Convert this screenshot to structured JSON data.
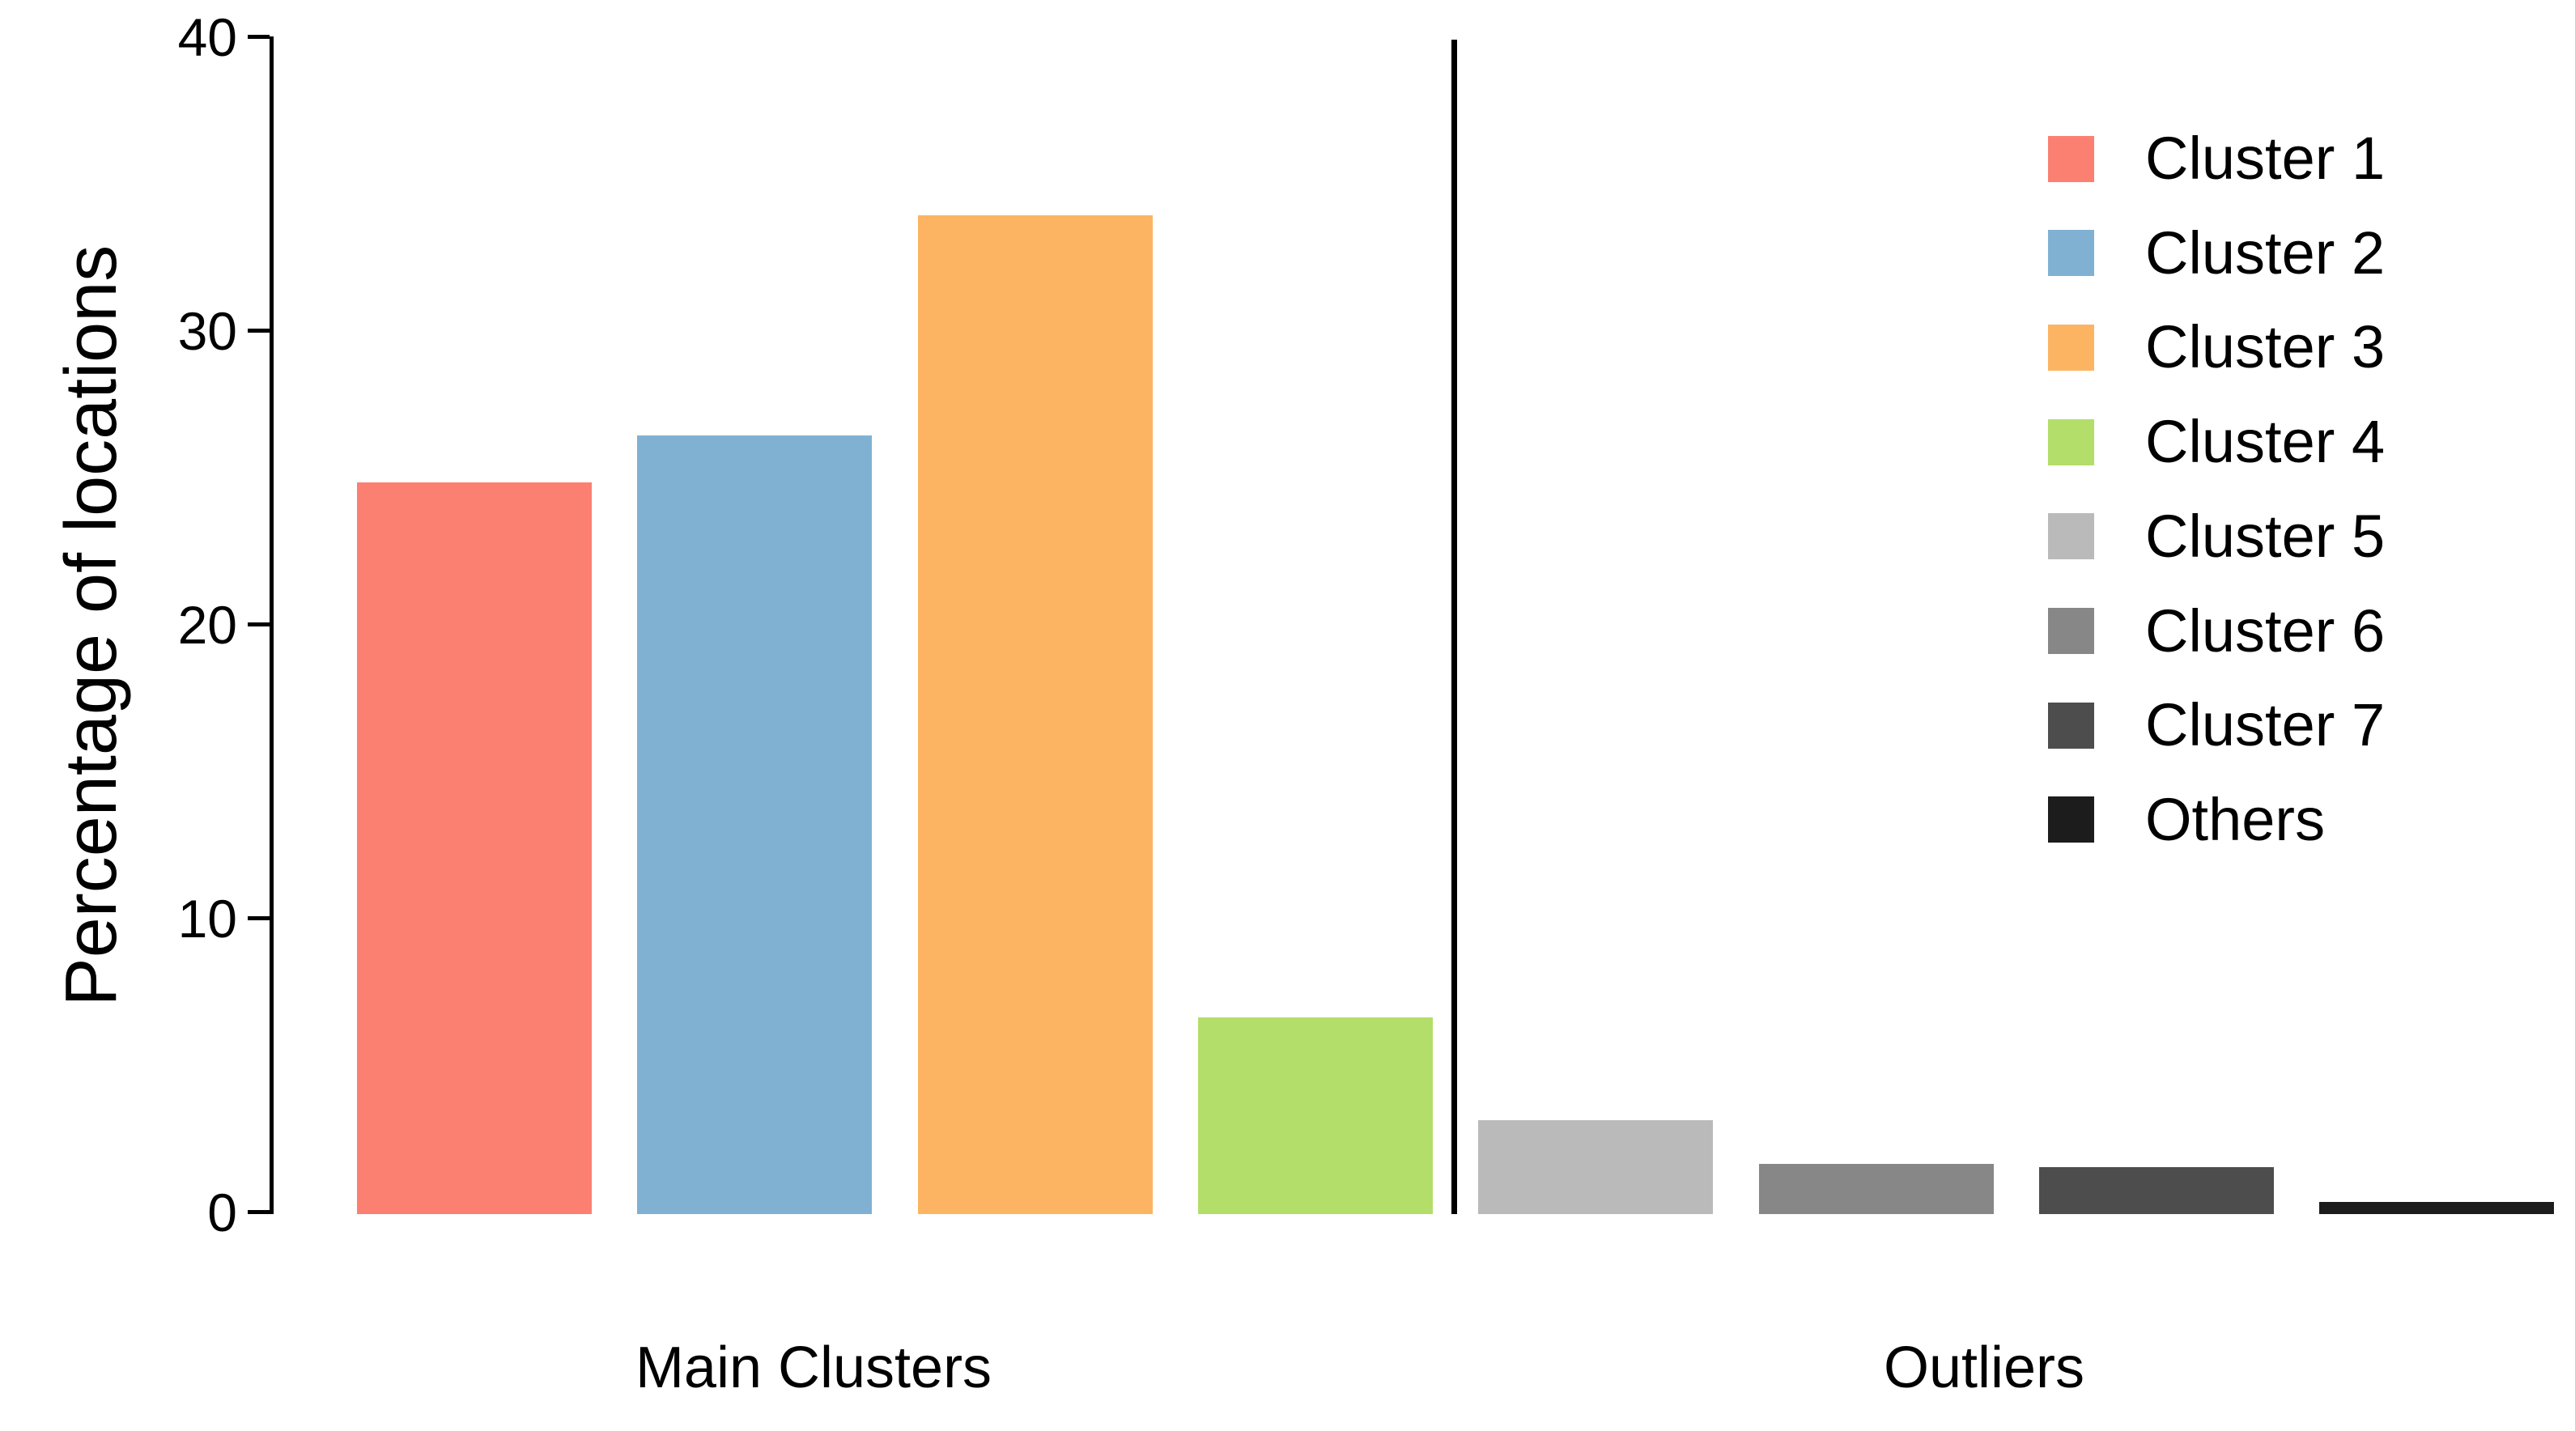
{
  "chart_data": {
    "type": "bar",
    "title": "",
    "xlabel": "",
    "ylabel": "Percentage of locations",
    "ylim": [
      0,
      40
    ],
    "yticks": [
      0,
      10,
      20,
      30,
      40
    ],
    "grid": false,
    "legend_position": "upper right",
    "groups": [
      {
        "label": "Main Clusters",
        "members": [
          "Cluster 1",
          "Cluster 2",
          "Cluster 3",
          "Cluster 4"
        ]
      },
      {
        "label": "Outliers",
        "members": [
          "Cluster 5",
          "Cluster 6",
          "Cluster 7",
          "Others"
        ]
      }
    ],
    "divider_note": "vertical black line separating Main Clusters group from Outliers group",
    "series": [
      {
        "name": "Cluster 1",
        "value": 24.9,
        "color": "#FB8072",
        "group": "Main Clusters"
      },
      {
        "name": "Cluster 2",
        "value": 26.5,
        "color": "#80B1D3",
        "group": "Main Clusters"
      },
      {
        "name": "Cluster 3",
        "value": 34.0,
        "color": "#FDB462",
        "group": "Main Clusters"
      },
      {
        "name": "Cluster 4",
        "value": 6.7,
        "color": "#B3DE69",
        "group": "Main Clusters"
      },
      {
        "name": "Cluster 5",
        "value": 3.2,
        "color": "#BABABA",
        "group": "Outliers"
      },
      {
        "name": "Cluster 6",
        "value": 1.7,
        "color": "#878787",
        "group": "Outliers"
      },
      {
        "name": "Cluster 7",
        "value": 1.6,
        "color": "#4D4D4D",
        "group": "Outliers"
      },
      {
        "name": "Others",
        "value": 0.4,
        "color": "#1C1C1C",
        "group": "Outliers"
      }
    ]
  }
}
